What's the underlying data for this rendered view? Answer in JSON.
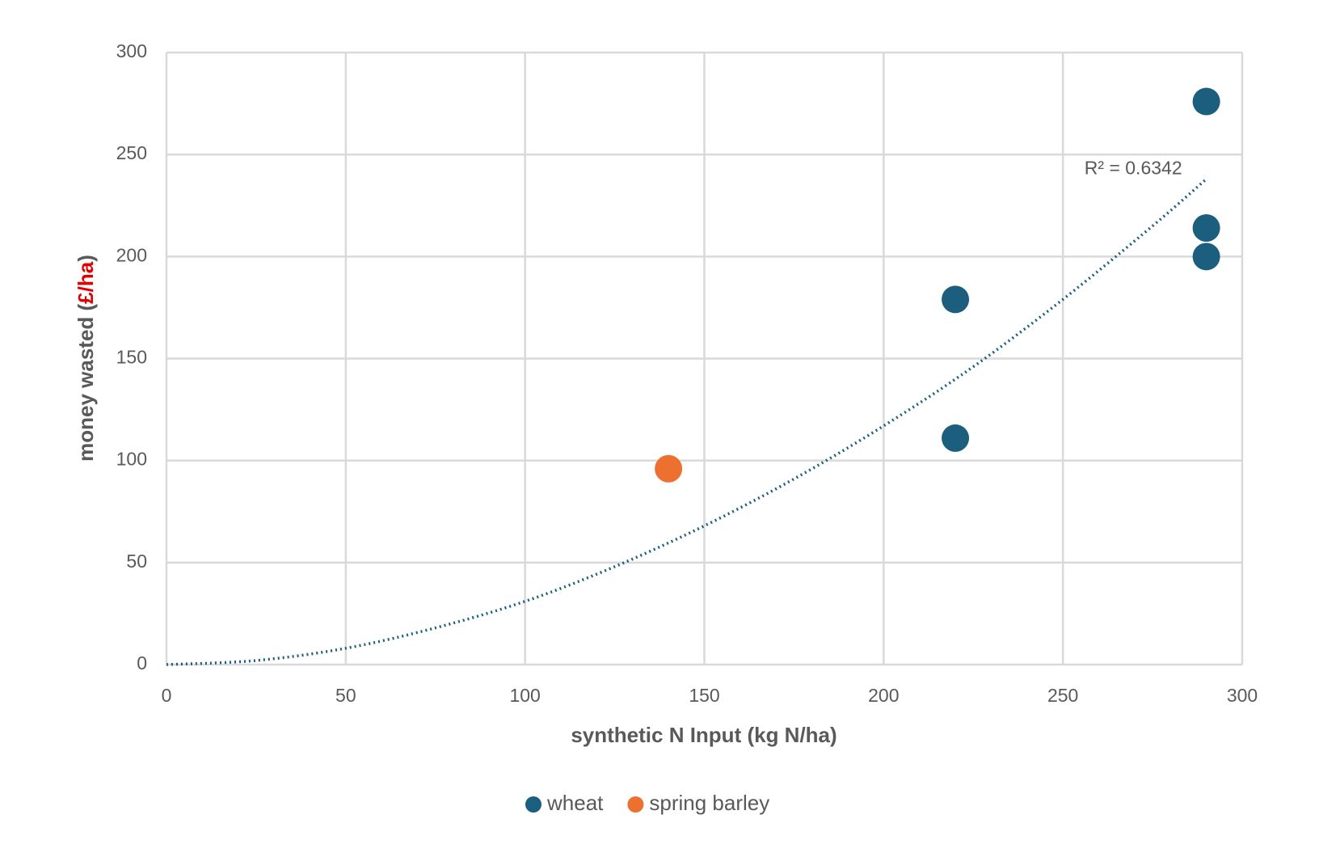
{
  "chart_data": {
    "type": "scatter",
    "xlabel": "synthetic N Input (kg N/ha)",
    "ylabel": {
      "before": "money wasted (",
      "highlight": "£/ha",
      "after": ")"
    },
    "xlim": [
      0,
      300
    ],
    "xticks": [
      0,
      50,
      100,
      150,
      200,
      250,
      300
    ],
    "ylim": [
      0,
      300
    ],
    "yticks": [
      0,
      50,
      100,
      150,
      200,
      250,
      300
    ],
    "grid": true,
    "legend": "bottom",
    "series": [
      {
        "name": "wheat",
        "color": "#1b5e7e",
        "x": [
          220,
          220,
          290,
          290,
          290
        ],
        "values": [
          179,
          111,
          276,
          214,
          200
        ]
      },
      {
        "name": "spring barley",
        "color": "#ee7030",
        "x": [
          140
        ],
        "values": [
          96
        ]
      }
    ],
    "trendline": {
      "color": "#1b5e7e",
      "label": "R² = 0.6342",
      "x": [
        0,
        25,
        50,
        75,
        100,
        125,
        150,
        175,
        200,
        225,
        250,
        275,
        290
      ],
      "values": [
        0,
        2,
        8,
        18,
        31,
        48,
        68,
        91,
        117,
        146,
        179,
        215,
        238
      ]
    }
  }
}
